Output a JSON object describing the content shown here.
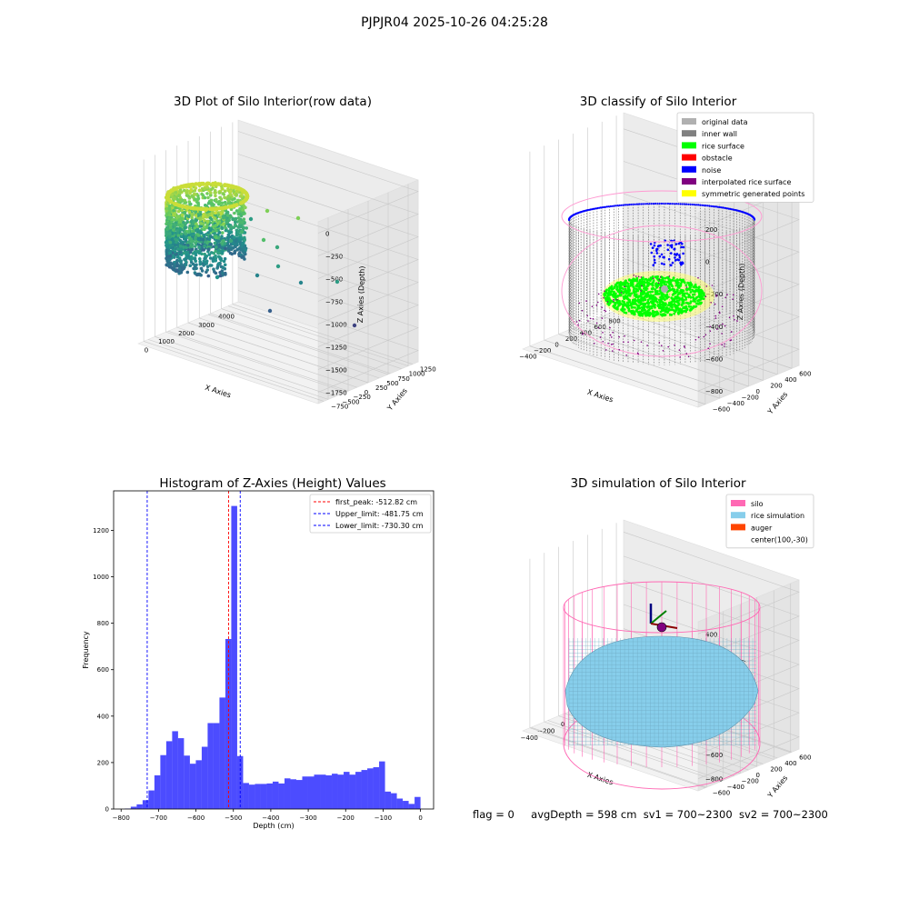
{
  "figure": {
    "title": "PJPJR04 2025-10-26 04:25:28",
    "status": {
      "flag": "flag = 0",
      "avg_depth": "avgDepth = 598 cm",
      "sv1": "sv1 = 700~2300",
      "sv2": "sv2 = 700~2300"
    }
  },
  "chart_data": [
    {
      "type": "scatter",
      "dims": "3d",
      "title": "3D Plot of Silo Interior(row data)",
      "xlabel": "X Axies",
      "ylabel": "Y Axies",
      "zlabel": "Z Axies (Depth)",
      "x_ticks": [
        "0",
        "1000",
        "2000",
        "3000",
        "4000"
      ],
      "y_ticks": [
        "1250",
        "1000",
        "750",
        "500",
        "250",
        "0",
        "−250",
        "−500",
        "−750"
      ],
      "z_ticks": [
        "0",
        "−250",
        "−500",
        "−750",
        "−1000",
        "−1250",
        "−1500",
        "−1750"
      ],
      "colormap": "viridis (by depth)",
      "grid": true
    },
    {
      "type": "scatter",
      "dims": "3d",
      "title": "3D classify of Silo Interior",
      "xlabel": "X Axies",
      "ylabel": "Y Axies",
      "zlabel": "Z Axies (Depth)",
      "x_ticks": [
        "−400",
        "−200",
        "0",
        "200",
        "400",
        "600",
        "800"
      ],
      "y_ticks": [
        "600",
        "400",
        "200",
        "0",
        "−200",
        "−400",
        "−600"
      ],
      "z_ticks": [
        "200",
        "0",
        "−200",
        "−400",
        "−600",
        "−800"
      ],
      "legend_position": "top-right",
      "legend": [
        {
          "label": "original data",
          "color": "#b0b0b0"
        },
        {
          "label": "inner wall",
          "color": "#808080"
        },
        {
          "label": "rice surface",
          "color": "#00ff00"
        },
        {
          "label": "obstacle",
          "color": "#ff0000"
        },
        {
          "label": "noise",
          "color": "#0000ff"
        },
        {
          "label": "interpolated rice surface",
          "color": "#800080"
        },
        {
          "label": "symmetric generated points",
          "color": "#ffff00"
        }
      ],
      "grid": true
    },
    {
      "type": "bar",
      "title": "Histogram of Z-Axies (Height) Values",
      "xlabel": "Depth (cm)",
      "ylabel": "Frequency",
      "bin_start": -790,
      "bin_width": 15.8,
      "values": [
        2,
        10,
        20,
        38,
        80,
        145,
        232,
        292,
        335,
        305,
        230,
        195,
        210,
        268,
        370,
        370,
        480,
        732,
        1305,
        228,
        112,
        105,
        108,
        108,
        110,
        118,
        110,
        132,
        128,
        125,
        140,
        140,
        148,
        148,
        145,
        152,
        148,
        160,
        148,
        160,
        168,
        175,
        180,
        205,
        75,
        68,
        45,
        35,
        22,
        52
      ],
      "xlim": [
        -820,
        35
      ],
      "ylim": [
        0,
        1370
      ],
      "x_ticks": [
        -800,
        -700,
        -600,
        -500,
        -400,
        -300,
        -200,
        -100,
        0
      ],
      "y_ticks": [
        0,
        200,
        400,
        600,
        800,
        1000,
        1200
      ],
      "bar_color": "#0000ff",
      "vlines": [
        {
          "label": "first_peak: -512.82 cm",
          "x": -512.82,
          "color": "#ff0000"
        },
        {
          "label": "Upper_limit: -481.75 cm",
          "x": -481.75,
          "color": "#0000ff"
        },
        {
          "label": "Lower_limit: -730.30 cm",
          "x": -730.3,
          "color": "#0000ff"
        }
      ],
      "legend_position": "top-right",
      "grid": false
    },
    {
      "type": "scatter",
      "dims": "3d",
      "title": "3D simulation of Silo Interior",
      "xlabel": "X Axies",
      "ylabel": "Y Axies",
      "zlabel": "Z Axies (Depth)",
      "x_ticks": [
        "−400",
        "−200",
        "0",
        "200",
        "400",
        "600"
      ],
      "y_ticks": [
        "600",
        "400",
        "200",
        "0",
        "−200",
        "−400",
        "−600"
      ],
      "z_ticks": [
        "400",
        "200",
        "0",
        "−200",
        "−400",
        "−600",
        "−800"
      ],
      "legend_position": "top-right",
      "legend": [
        {
          "label": "silo",
          "color": "#ff69b4"
        },
        {
          "label": "rice simulation",
          "color": "#87ceeb"
        },
        {
          "label": "auger",
          "color": "#ff4500"
        },
        {
          "label": "center(100,-30)",
          "color": ""
        }
      ],
      "grid": true
    }
  ]
}
